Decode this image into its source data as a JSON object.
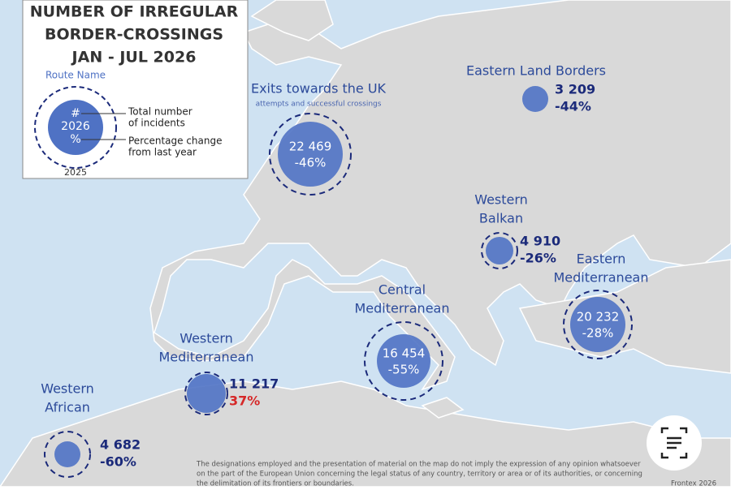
{
  "legend": {
    "title": [
      "NUMBER OF IRREGULAR",
      "BORDER-CROSSINGS",
      "JAN - JUL  2026"
    ],
    "route_name": "Route Name",
    "symbol": [
      "#",
      "2026",
      "%"
    ],
    "total": [
      "Total number",
      "of incidents"
    ],
    "change": [
      "Percentage change",
      "from last year"
    ],
    "year": "2025"
  },
  "routes": [
    {
      "name": [
        "Exits towards the UK"
      ],
      "subtitle": "attempts and successful crossings",
      "count": "22 469",
      "change": "-46%"
    },
    {
      "name": [
        "Eastern Land Borders"
      ],
      "count": "3 209",
      "change": "-44%"
    },
    {
      "name": [
        "Western",
        "Balkan"
      ],
      "count": "4 910",
      "change": "-26%"
    },
    {
      "name": [
        "Eastern",
        "Mediterranean"
      ],
      "count": "20 232",
      "change": "-28%"
    },
    {
      "name": [
        "Central",
        "Mediterranean"
      ],
      "count": "16 454",
      "change": "-55%"
    },
    {
      "name": [
        "Western",
        "Mediterranean"
      ],
      "count": "11 217",
      "change": "37%"
    },
    {
      "name": [
        "Western",
        "African"
      ],
      "count": "4 682",
      "change": "-60%"
    }
  ],
  "disclaimer": [
    "The designations employed and the presentation of material on the map do not imply the expression of any opinion whatsoever",
    "on the part of the European Union concerning the legal status of any country, territory or area or of its authorities, or concerning",
    "the delimitation of its frontiers or boundaries."
  ],
  "credit": "Frontex 2026"
}
